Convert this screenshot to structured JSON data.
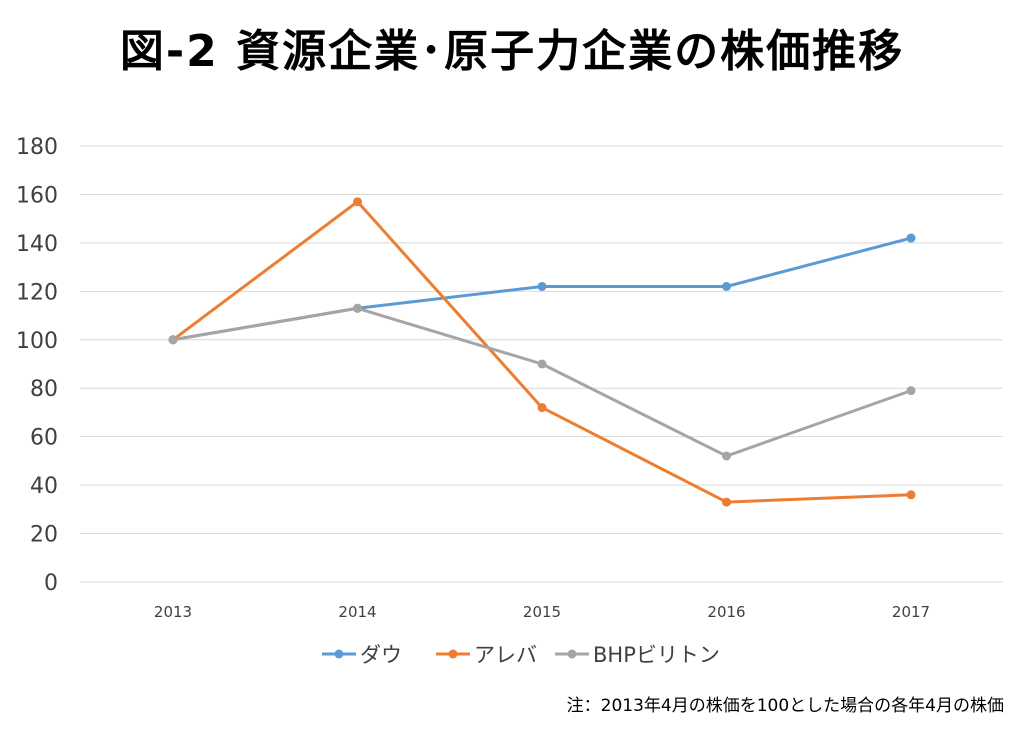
{
  "chart_data": {
    "type": "line",
    "title": "図-2 資源企業･原子力企業の株価推移",
    "xlabel": "",
    "ylabel": "",
    "categories": [
      "2013",
      "2014",
      "2015",
      "2016",
      "2017"
    ],
    "ylim": [
      0,
      180
    ],
    "yticks": [
      "0",
      "20",
      "40",
      "60",
      "80",
      "100",
      "120",
      "140",
      "160",
      "180"
    ],
    "grid": true,
    "legend_position": "bottom",
    "series": [
      {
        "name": "ダウ",
        "color": "#5B9BD5",
        "values": [
          100,
          113,
          122,
          122,
          142
        ]
      },
      {
        "name": "アレバ",
        "color": "#ED7D31",
        "values": [
          100,
          157,
          72,
          33,
          36
        ]
      },
      {
        "name": "BHPビリトン",
        "color": "#A5A5A5",
        "values": [
          100,
          113,
          90,
          52,
          79
        ]
      }
    ],
    "footnote": "注：2013年4月の株価を100とした場合の各年4月の株価"
  }
}
